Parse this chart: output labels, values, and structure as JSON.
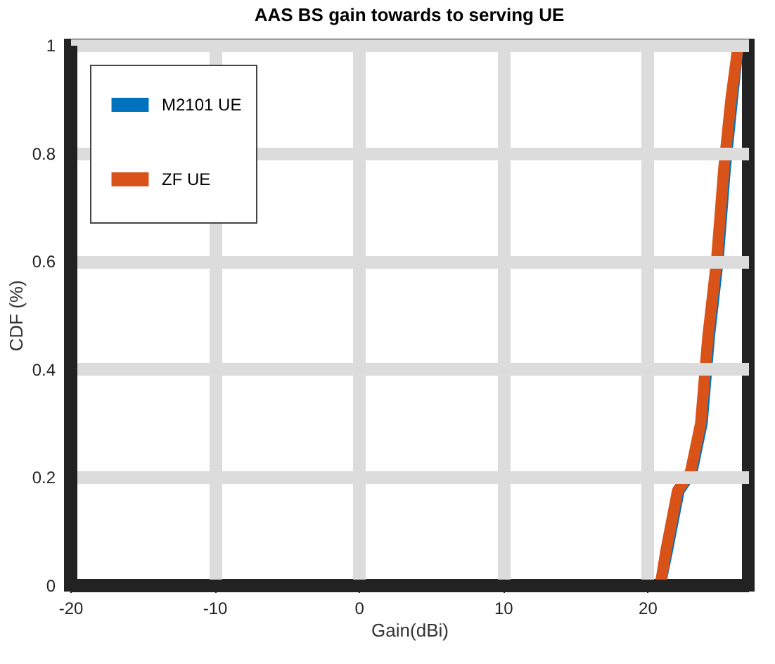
{
  "chart_data": {
    "type": "line",
    "title": "AAS BS gain towards to serving UE",
    "xlabel": "Gain(dBi)",
    "ylabel": "CDF (%)",
    "series": [
      {
        "name": "M2101 UE",
        "color": "#0072bd",
        "x": [
          20.9,
          21.4,
          22.2,
          23.1,
          23.8,
          24.3,
          24.9,
          25.4,
          25.9,
          26.3
        ],
        "values": [
          0,
          0.065,
          0.175,
          0.21,
          0.3,
          0.46,
          0.6,
          0.77,
          0.9,
          1
        ]
      },
      {
        "name": "ZF UE",
        "color": "#d95319",
        "x": [
          20.9,
          21.3,
          22.1,
          23.0,
          23.7,
          24.2,
          24.8,
          25.3,
          25.8,
          26.3
        ],
        "values": [
          0,
          0.065,
          0.175,
          0.21,
          0.3,
          0.46,
          0.6,
          0.77,
          0.9,
          1
        ]
      }
    ],
    "xlim": [
      -20,
      27
    ],
    "xticks": [
      -20,
      -10,
      0,
      10,
      20
    ],
    "ylim": [
      0,
      1
    ],
    "yticks": [
      {
        "value": 0,
        "label": "0"
      },
      0.2,
      0.4,
      0.6,
      0.8,
      {
        "value": 1,
        "label": "1"
      }
    ],
    "grid": true,
    "legend": "top left",
    "marker": "none",
    "line_style": "solid"
  }
}
